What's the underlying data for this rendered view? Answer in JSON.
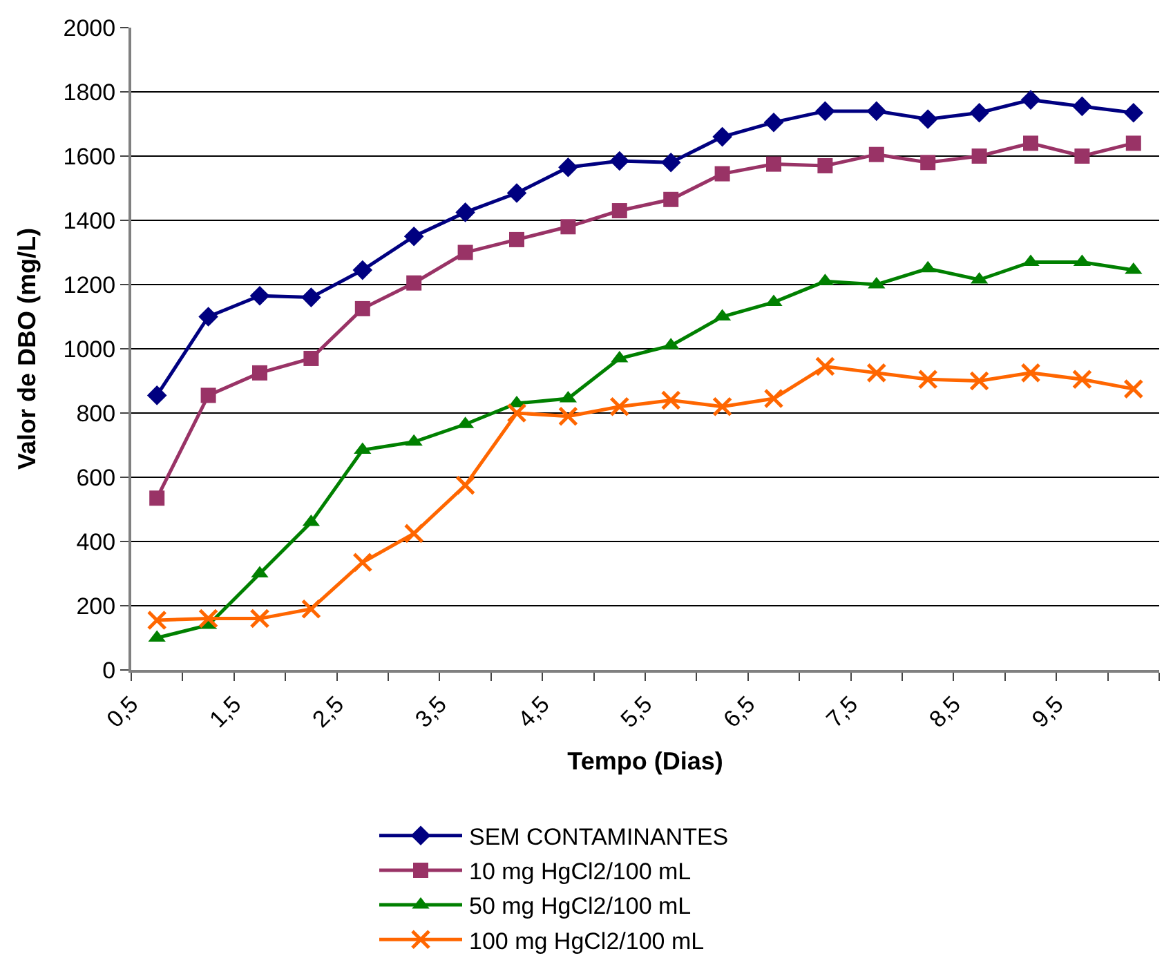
{
  "chart_data": {
    "type": "line",
    "xlabel": "Tempo (Dias)",
    "ylabel": "Valor de DBO (mg/L)",
    "x": [
      0.75,
      1.25,
      1.75,
      2.25,
      2.75,
      3.25,
      3.75,
      4.25,
      4.75,
      5.25,
      5.75,
      6.25,
      6.75,
      7.25,
      7.75,
      8.25,
      8.75,
      9.25,
      9.75,
      10.25
    ],
    "series": [
      {
        "name": "SEM CONTAMINANTES",
        "color": "#000080",
        "marker": "diamond",
        "values": [
          855,
          1100,
          1165,
          1160,
          1245,
          1350,
          1425,
          1485,
          1565,
          1585,
          1580,
          1660,
          1705,
          1740,
          1740,
          1715,
          1735,
          1775,
          1755,
          1735
        ]
      },
      {
        "name": "10 mg HgCl2/100 mL",
        "color": "#993366",
        "marker": "square",
        "values": [
          535,
          855,
          925,
          970,
          1125,
          1205,
          1300,
          1340,
          1380,
          1430,
          1465,
          1545,
          1575,
          1570,
          1605,
          1580,
          1600,
          1640,
          1600,
          1640
        ]
      },
      {
        "name": "50 mg HgCl2/100 mL",
        "color": "#008000",
        "marker": "triangle",
        "values": [
          100,
          140,
          300,
          460,
          685,
          710,
          765,
          830,
          845,
          970,
          1010,
          1100,
          1145,
          1210,
          1200,
          1250,
          1215,
          1270,
          1270,
          1245
        ]
      },
      {
        "name": "100 mg HgCl2/100 mL",
        "color": "#ff6600",
        "marker": "cross",
        "values": [
          155,
          160,
          160,
          190,
          335,
          425,
          575,
          800,
          790,
          820,
          840,
          820,
          845,
          945,
          925,
          905,
          900,
          925,
          905,
          875
        ]
      }
    ],
    "xlim": [
      0.5,
      10.5
    ],
    "xticks": [
      {
        "value": 0.5,
        "label": "0,5"
      },
      {
        "value": 1,
        "label": null
      },
      {
        "value": 1.5,
        "label": "1,5"
      },
      {
        "value": 2,
        "label": null
      },
      {
        "value": 2.5,
        "label": "2,5"
      },
      {
        "value": 3,
        "label": null
      },
      {
        "value": 3.5,
        "label": "3,5"
      },
      {
        "value": 4,
        "label": null
      },
      {
        "value": 4.5,
        "label": "4,5"
      },
      {
        "value": 5,
        "label": null
      },
      {
        "value": 5.5,
        "label": "5,5"
      },
      {
        "value": 6,
        "label": null
      },
      {
        "value": 6.5,
        "label": "6,5"
      },
      {
        "value": 7,
        "label": null
      },
      {
        "value": 7.5,
        "label": "7,5"
      },
      {
        "value": 8,
        "label": null
      },
      {
        "value": 8.5,
        "label": "8,5"
      },
      {
        "value": 9,
        "label": null
      },
      {
        "value": 9.5,
        "label": "9,5"
      },
      {
        "value": 10,
        "label": null
      },
      {
        "value": 10.5,
        "label": null
      }
    ],
    "ylim": [
      0,
      2000
    ],
    "yticks": [
      0,
      200,
      400,
      600,
      800,
      1000,
      1200,
      1400,
      1600,
      1800,
      2000
    ],
    "grid": "y",
    "legend": "bottom",
    "line_style": "solid"
  }
}
